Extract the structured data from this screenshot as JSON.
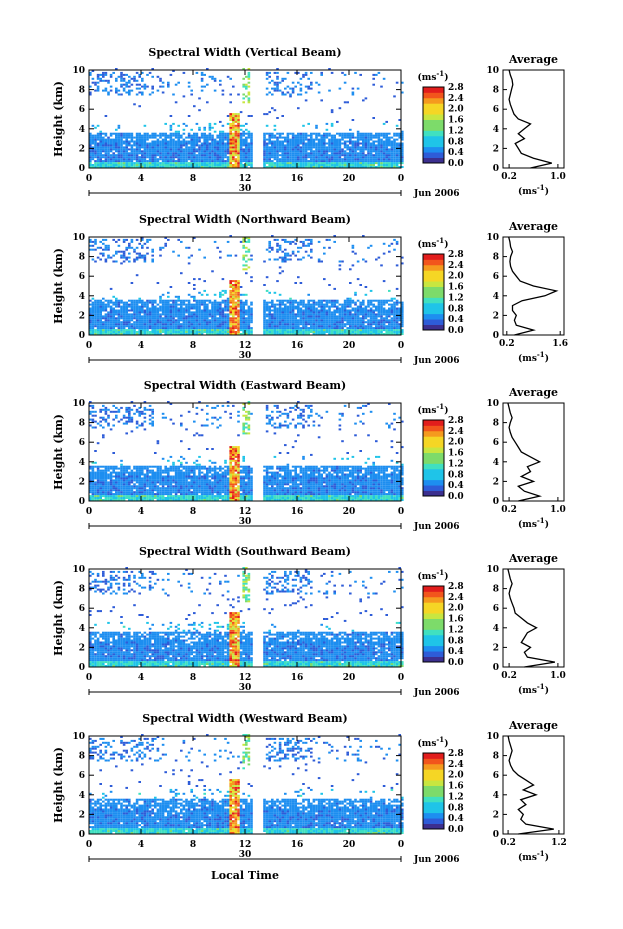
{
  "figure": {
    "x_axis_label": "Local Time",
    "colorbar_unit": "(ms",
    "colorbar_unit_exp": "-1",
    "avg_x_unit": "(ms",
    "avg_x_unit_exp": "-1",
    "average_title": "Average",
    "date_label": "Jun 2006",
    "day_label": "30"
  },
  "chart_data": [
    {
      "type": "heatmap",
      "title": "Spectral Width (Vertical Beam)",
      "ylabel": "Height (km)",
      "xlabel": "Local Time",
      "x_ticks": [
        "0",
        "4",
        "8",
        "12",
        "16",
        "20",
        "0"
      ],
      "y_ticks": [
        "0",
        "2",
        "4",
        "6",
        "8",
        "10"
      ],
      "xlim": [
        0,
        24
      ],
      "ylim": [
        0,
        10
      ],
      "colorbar": {
        "ticks": [
          "0.0",
          "0.4",
          "0.8",
          "1.2",
          "1.6",
          "2.0",
          "2.4",
          "2.8"
        ],
        "range": [
          0,
          2.8
        ]
      },
      "data_gap_hours": [
        12.4,
        13.3
      ],
      "average": {
        "title": "Average",
        "x_ticks": [
          "0.2",
          "1.0"
        ],
        "xlim": [
          0.1,
          1.1
        ],
        "height_km": [
          0,
          0.5,
          1,
          1.5,
          2,
          2.5,
          3,
          3.5,
          4,
          4.5,
          5,
          5.5,
          6,
          6.5,
          7,
          7.5,
          8,
          8.5,
          9,
          9.5,
          10
        ],
        "values": [
          0.55,
          0.9,
          0.6,
          0.4,
          0.35,
          0.3,
          0.45,
          0.35,
          0.45,
          0.55,
          0.35,
          0.28,
          0.25,
          0.22,
          0.2,
          0.22,
          0.24,
          0.26,
          0.25,
          0.22,
          0.2
        ]
      }
    },
    {
      "type": "heatmap",
      "title": "Spectral Width (Northward Beam)",
      "ylabel": "Height (km)",
      "xlabel": "Local Time",
      "x_ticks": [
        "0",
        "4",
        "8",
        "12",
        "16",
        "20",
        "0"
      ],
      "y_ticks": [
        "0",
        "2",
        "4",
        "6",
        "8",
        "10"
      ],
      "xlim": [
        0,
        24
      ],
      "ylim": [
        0,
        10
      ],
      "colorbar": {
        "ticks": [
          "0.0",
          "0.4",
          "0.8",
          "1.2",
          "1.6",
          "2.0",
          "2.4",
          "2.8"
        ],
        "range": [
          0,
          2.8
        ]
      },
      "data_gap_hours": [
        12.4,
        13.3
      ],
      "average": {
        "title": "Average",
        "x_ticks": [
          "0.2",
          "1.6"
        ],
        "xlim": [
          0.1,
          1.7
        ],
        "height_km": [
          0,
          0.5,
          1,
          1.5,
          2,
          2.5,
          3,
          3.5,
          4,
          4.5,
          5,
          5.5,
          6,
          6.5,
          7,
          7.5,
          8,
          8.5,
          9,
          9.5,
          10
        ],
        "values": [
          0.4,
          0.9,
          0.45,
          0.4,
          0.45,
          0.35,
          0.35,
          0.6,
          1.2,
          1.5,
          0.9,
          0.55,
          0.45,
          0.35,
          0.3,
          0.28,
          0.3,
          0.35,
          0.3,
          0.28,
          0.25
        ]
      }
    },
    {
      "type": "heatmap",
      "title": "Spectral Width (Eastward Beam)",
      "ylabel": "Height (km)",
      "xlabel": "Local Time",
      "x_ticks": [
        "0",
        "4",
        "8",
        "12",
        "16",
        "20",
        "0"
      ],
      "y_ticks": [
        "0",
        "2",
        "4",
        "6",
        "8",
        "10"
      ],
      "xlim": [
        0,
        24
      ],
      "ylim": [
        0,
        10
      ],
      "colorbar": {
        "ticks": [
          "0.0",
          "0.4",
          "0.8",
          "1.2",
          "1.6",
          "2.0",
          "2.4",
          "2.8"
        ],
        "range": [
          0,
          2.8
        ]
      },
      "data_gap_hours": [
        12.4,
        13.3
      ],
      "average": {
        "title": "Average",
        "x_ticks": [
          "0.2",
          "1.0"
        ],
        "xlim": [
          0.1,
          1.1
        ],
        "height_km": [
          0,
          0.5,
          1,
          1.5,
          2,
          2.5,
          3,
          3.5,
          4,
          4.5,
          5,
          5.5,
          6,
          6.5,
          7,
          7.5,
          8,
          8.5,
          9,
          9.5,
          10
        ],
        "values": [
          0.35,
          0.7,
          0.45,
          0.35,
          0.6,
          0.4,
          0.55,
          0.5,
          0.7,
          0.55,
          0.4,
          0.35,
          0.3,
          0.25,
          0.22,
          0.2,
          0.22,
          0.25,
          0.22,
          0.2,
          0.18
        ]
      }
    },
    {
      "type": "heatmap",
      "title": "Spectral Width (Southward Beam)",
      "ylabel": "Height (km)",
      "xlabel": "Local Time",
      "x_ticks": [
        "0",
        "4",
        "8",
        "12",
        "16",
        "20",
        "0"
      ],
      "y_ticks": [
        "0",
        "2",
        "4",
        "6",
        "8",
        "10"
      ],
      "xlim": [
        0,
        24
      ],
      "ylim": [
        0,
        10
      ],
      "colorbar": {
        "ticks": [
          "0.0",
          "0.4",
          "0.8",
          "1.2",
          "1.6",
          "2.0",
          "2.4",
          "2.8"
        ],
        "range": [
          0,
          2.8
        ]
      },
      "data_gap_hours": [
        12.4,
        13.3
      ],
      "average": {
        "title": "Average",
        "x_ticks": [
          "0.2",
          "1.0"
        ],
        "xlim": [
          0.1,
          1.1
        ],
        "height_km": [
          0,
          0.5,
          1,
          1.5,
          2,
          2.5,
          3,
          3.5,
          4,
          4.5,
          5,
          5.5,
          6,
          6.5,
          7,
          7.5,
          8,
          8.5,
          9,
          9.5,
          10
        ],
        "values": [
          0.45,
          0.95,
          0.5,
          0.45,
          0.55,
          0.4,
          0.45,
          0.5,
          0.65,
          0.5,
          0.4,
          0.3,
          0.28,
          0.25,
          0.22,
          0.2,
          0.22,
          0.25,
          0.22,
          0.2,
          0.18
        ]
      }
    },
    {
      "type": "heatmap",
      "title": "Spectral Width (Westward Beam)",
      "ylabel": "Height (km)",
      "xlabel": "Local Time",
      "x_ticks": [
        "0",
        "4",
        "8",
        "12",
        "16",
        "20",
        "0"
      ],
      "y_ticks": [
        "0",
        "2",
        "4",
        "6",
        "8",
        "10"
      ],
      "xlim": [
        0,
        24
      ],
      "ylim": [
        0,
        10
      ],
      "colorbar": {
        "ticks": [
          "0.0",
          "0.4",
          "0.8",
          "1.2",
          "1.6",
          "2.0",
          "2.4",
          "2.8"
        ],
        "range": [
          0,
          2.8
        ]
      },
      "data_gap_hours": [
        12.4,
        13.3
      ],
      "average": {
        "title": "Average",
        "x_ticks": [
          "0.2",
          "1.2"
        ],
        "xlim": [
          0.1,
          1.3
        ],
        "height_km": [
          0,
          0.5,
          1,
          1.5,
          2,
          2.5,
          3,
          3.5,
          4,
          4.5,
          5,
          5.5,
          6,
          6.5,
          7,
          7.5,
          8,
          8.5,
          9,
          9.5,
          10
        ],
        "values": [
          0.4,
          1.1,
          0.55,
          0.45,
          0.5,
          0.4,
          0.55,
          0.45,
          0.75,
          0.5,
          0.7,
          0.55,
          0.4,
          0.3,
          0.25,
          0.22,
          0.25,
          0.28,
          0.25,
          0.22,
          0.2
        ]
      }
    }
  ]
}
